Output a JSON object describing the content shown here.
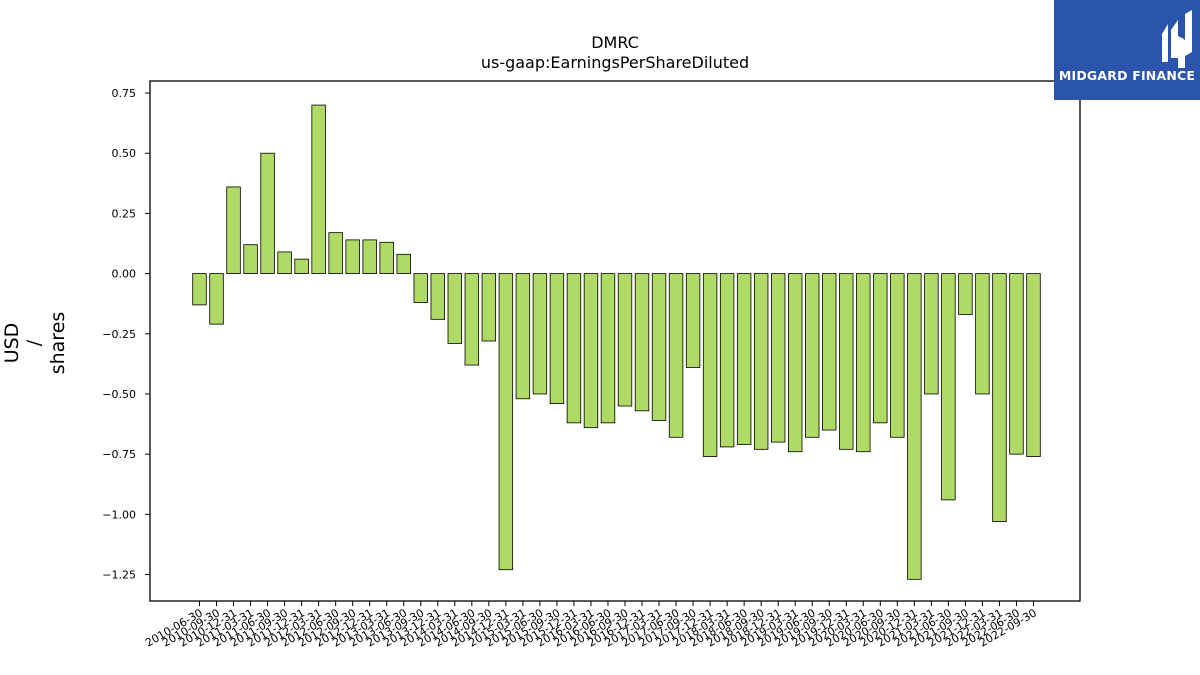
{
  "chart_data": {
    "type": "bar",
    "title": "DMRC",
    "subtitle": "us-gaap:EarningsPerShareDiluted",
    "ylabel_lines": [
      "USD",
      "/",
      "shares"
    ],
    "ylim": [
      -1.36,
      0.8
    ],
    "yticks": [
      "0.75",
      "0.50",
      "0.25",
      "0.00",
      "−0.25",
      "−0.50",
      "−0.75",
      "−1.00",
      "−1.25"
    ],
    "ytick_values": [
      0.75,
      0.5,
      0.25,
      0.0,
      -0.25,
      -0.5,
      -0.75,
      -1.0,
      -1.25
    ],
    "bar_color": "#b0da66",
    "edge_color": "#000000",
    "grid": false,
    "categories": [
      "2010-06-30",
      "2010-09-30",
      "2010-12-31",
      "2011-03-31",
      "2011-06-30",
      "2011-09-30",
      "2011-12-31",
      "2012-03-31",
      "2012-06-30",
      "2012-09-30",
      "2012-12-31",
      "2013-03-31",
      "2013-06-30",
      "2013-09-30",
      "2013-12-31",
      "2014-03-31",
      "2014-06-30",
      "2014-09-30",
      "2014-12-31",
      "2015-03-31",
      "2015-06-30",
      "2015-09-30",
      "2015-12-31",
      "2016-03-31",
      "2016-06-30",
      "2016-09-30",
      "2016-12-31",
      "2017-03-31",
      "2017-06-30",
      "2017-09-30",
      "2017-12-31",
      "2018-03-31",
      "2018-06-30",
      "2018-09-30",
      "2018-12-31",
      "2019-03-31",
      "2019-06-30",
      "2019-09-30",
      "2019-12-31",
      "2020-03-31",
      "2020-06-30",
      "2020-09-30",
      "2020-12-31",
      "2021-03-31",
      "2021-06-30",
      "2021-09-30",
      "2021-12-31",
      "2022-03-31",
      "2022-06-30",
      "2022-09-30"
    ],
    "values": [
      -0.13,
      -0.21,
      0.36,
      0.12,
      0.5,
      0.09,
      0.06,
      0.7,
      0.17,
      0.14,
      0.14,
      0.13,
      0.08,
      -0.12,
      -0.19,
      -0.29,
      -0.38,
      -0.28,
      -1.23,
      -0.52,
      -0.5,
      -0.54,
      -0.62,
      -0.64,
      -0.62,
      -0.55,
      -0.57,
      -0.61,
      -0.68,
      -0.39,
      -0.76,
      -0.72,
      -0.71,
      -0.73,
      -0.7,
      -0.74,
      -0.68,
      -0.65,
      -0.73,
      -0.74,
      -0.62,
      -0.68,
      -1.27,
      -0.5,
      -0.94,
      -0.17,
      -0.5,
      -1.03,
      -0.75,
      -0.76
    ]
  },
  "logo": {
    "text": "MIDGARD FINANCE",
    "background": "#2b55ad"
  }
}
